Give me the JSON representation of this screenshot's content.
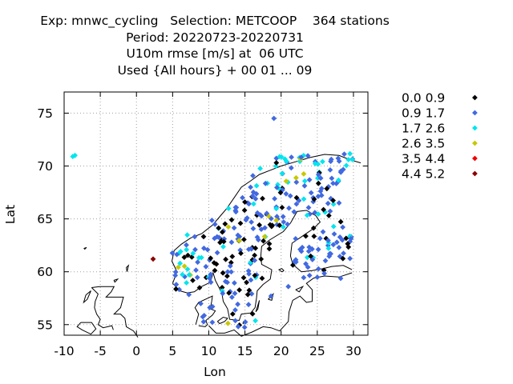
{
  "title_lines": [
    "Exp: mnwc_cycling   Selection: METCOOP    364 stations",
    "Period: 20220723-20220731",
    "U10m rmse [m/s] at  06 UTC",
    "Used {All hours} + 00 01 ... 09"
  ],
  "chart_data": {
    "type": "scatter",
    "xlabel": "Lon",
    "ylabel": "Lat",
    "xlim": [
      -10,
      32
    ],
    "ylim": [
      54,
      77
    ],
    "xticks": [
      -10,
      -5,
      0,
      5,
      10,
      15,
      20,
      25,
      30
    ],
    "yticks": [
      55,
      60,
      65,
      70,
      75
    ],
    "grid": true,
    "legend_position": "right",
    "series": [
      {
        "name": "0.0 0.9",
        "color": "#000000"
      },
      {
        "name": "0.9 1.7",
        "color": "#4169e1"
      },
      {
        "name": "1.7 2.6",
        "color": "#00e5ee"
      },
      {
        "name": "2.6 3.5",
        "color": "#c8c800"
      },
      {
        "name": "3.5 4.4",
        "color": "#ee0000"
      },
      {
        "name": "4.4 5.2",
        "color": "#8b0000"
      }
    ]
  }
}
